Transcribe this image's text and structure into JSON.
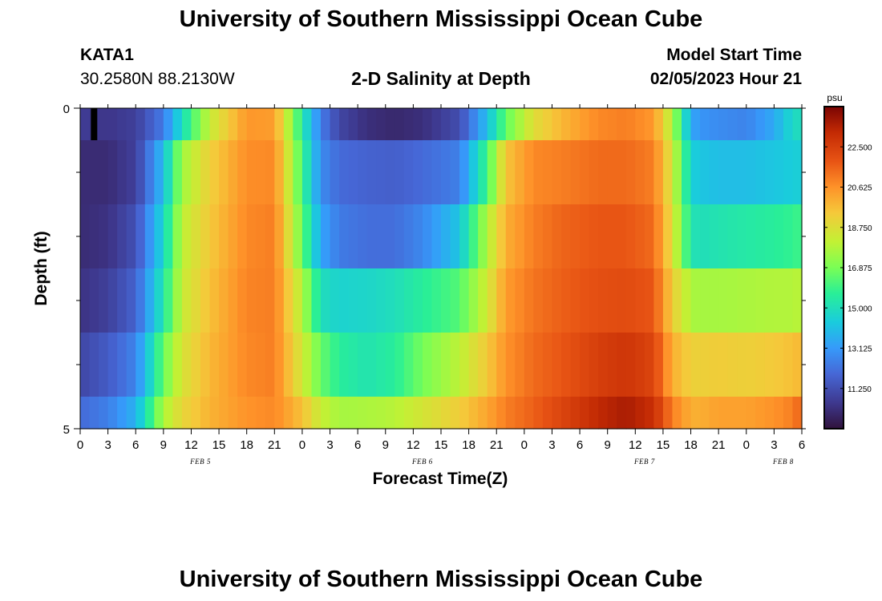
{
  "header": {
    "title": "University of Southern Mississippi Ocean Cube",
    "station": "KATA1",
    "coords": "30.2580N  88.2130W",
    "subtitle": "2-D Salinity at Depth",
    "model_start_label": "Model Start Time",
    "model_start_value": "02/05/2023 Hour 21"
  },
  "footer": {
    "title": "University of Southern Mississippi Ocean Cube"
  },
  "chart_data": {
    "type": "heatmap",
    "title": "2-D Salinity at Depth",
    "xlabel": "Forecast Time(Z)",
    "ylabel": "Depth (ft)",
    "ylim": [
      0,
      5
    ],
    "y_tick_labels": [
      "0",
      "5"
    ],
    "x_tick_labels": [
      "0",
      "3",
      "6",
      "9",
      "12",
      "15",
      "18",
      "21",
      "0",
      "3",
      "6",
      "9",
      "12",
      "15",
      "18",
      "21",
      "0",
      "3",
      "6",
      "9",
      "12",
      "15",
      "18",
      "21",
      "0",
      "3",
      "6"
    ],
    "date_labels": [
      {
        "label": "FEB 5",
        "hour": 13
      },
      {
        "label": "FEB 6",
        "hour": 37
      },
      {
        "label": "FEB 7",
        "hour": 61
      },
      {
        "label": "FEB 8",
        "hour": 76
      }
    ],
    "hours_range": [
      0,
      78
    ],
    "depth_bins": [
      0.25,
      1.0,
      2.0,
      3.0,
      4.0,
      4.75
    ],
    "colorbar": {
      "unit": "psu",
      "min": 9.375,
      "max": 24.375,
      "ticks": [
        "22.500",
        "20.625",
        "18.750",
        "16.875",
        "15.000",
        "13.125",
        "11.250"
      ],
      "tick_values": [
        22.5,
        20.625,
        18.75,
        16.875,
        15.0,
        13.125,
        11.25
      ]
    },
    "salinity_keyframes": {
      "hours": [
        0,
        3,
        6,
        9,
        11,
        14,
        18,
        21,
        24,
        26,
        28,
        31,
        34,
        37,
        41,
        44,
        46,
        49,
        52,
        56,
        59,
        62,
        64,
        66,
        67,
        69,
        72,
        75,
        77,
        78
      ],
      "layers": [
        [
          10.7,
          10.5,
          10.8,
          12.4,
          14.9,
          18.2,
          20.5,
          20.4,
          15.4,
          12.5,
          11.0,
          10.3,
          10.1,
          10.3,
          11.2,
          14.0,
          16.5,
          18.8,
          19.8,
          20.8,
          21.0,
          20.5,
          17.8,
          13.5,
          13.0,
          12.8,
          12.6,
          13.5,
          14.8,
          15.0
        ],
        [
          10.2,
          10.2,
          10.8,
          14.0,
          17.5,
          19.2,
          20.7,
          20.8,
          16.0,
          12.8,
          12.0,
          11.8,
          11.7,
          12.0,
          12.5,
          16.0,
          19.5,
          20.8,
          21.0,
          21.4,
          21.4,
          21.0,
          18.5,
          14.5,
          14.2,
          14.0,
          14.0,
          14.2,
          14.4,
          14.5
        ],
        [
          10.2,
          10.4,
          11.3,
          14.7,
          18.0,
          19.4,
          20.8,
          21.0,
          16.6,
          13.4,
          12.4,
          12.1,
          12.1,
          12.7,
          14.2,
          17.8,
          20.0,
          21.0,
          21.5,
          21.8,
          21.8,
          21.4,
          18.8,
          15.2,
          15.0,
          15.2,
          15.4,
          15.6,
          15.8,
          16.0
        ],
        [
          10.4,
          10.8,
          11.8,
          15.3,
          18.2,
          19.6,
          20.9,
          21.0,
          17.8,
          15.0,
          14.6,
          14.7,
          15.0,
          15.6,
          16.3,
          18.4,
          20.4,
          21.2,
          21.6,
          22.0,
          22.1,
          21.8,
          19.3,
          17.7,
          17.6,
          17.6,
          17.7,
          17.8,
          17.8,
          18.0
        ],
        [
          11.0,
          11.6,
          12.6,
          16.6,
          18.6,
          19.8,
          20.8,
          21.0,
          18.4,
          16.6,
          15.6,
          15.2,
          15.6,
          16.8,
          18.0,
          19.4,
          20.6,
          21.4,
          21.8,
          22.5,
          22.8,
          22.3,
          20.0,
          19.2,
          19.2,
          19.3,
          19.2,
          19.4,
          19.6,
          19.8
        ],
        [
          12.0,
          12.5,
          13.7,
          17.7,
          19.0,
          19.9,
          20.6,
          20.8,
          19.6,
          18.2,
          17.6,
          17.7,
          17.9,
          18.5,
          19.3,
          20.2,
          21.0,
          21.6,
          22.3,
          23.2,
          23.6,
          23.0,
          21.0,
          20.0,
          20.0,
          20.3,
          20.3,
          20.6,
          21.0,
          21.6
        ]
      ]
    },
    "highlight_cell": {
      "hour": 1.5,
      "depth_bin": 0,
      "value": 9.5
    }
  }
}
